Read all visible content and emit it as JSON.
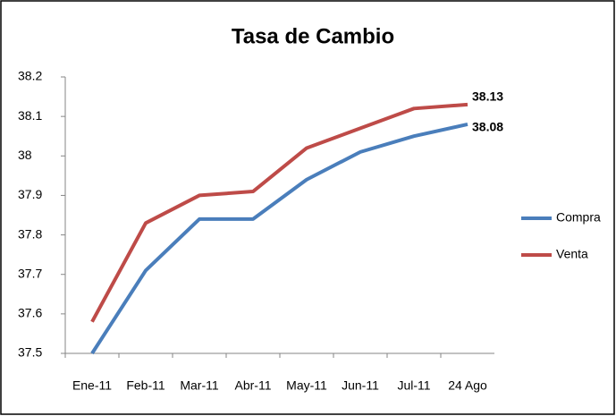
{
  "chart_data": {
    "type": "line",
    "title": "Tasa de Cambio",
    "categories": [
      "Ene-11",
      "Feb-11",
      "Mar-11",
      "Abr-11",
      "May-11",
      "Jun-11",
      "Jul-11",
      "24 Ago"
    ],
    "series": [
      {
        "name": "Compra",
        "color": "#4a7ebb",
        "values": [
          37.5,
          37.71,
          37.84,
          37.84,
          37.94,
          38.01,
          38.05,
          38.08
        ],
        "value_labels": [
          null,
          null,
          null,
          null,
          null,
          null,
          null,
          "38.08"
        ]
      },
      {
        "name": "Venta",
        "color": "#be4b48",
        "values": [
          37.58,
          37.83,
          37.9,
          37.91,
          38.02,
          38.07,
          38.12,
          38.13
        ],
        "value_labels": [
          null,
          null,
          null,
          null,
          null,
          null,
          null,
          "38.13"
        ]
      }
    ],
    "ylim": [
      37.5,
      38.2
    ],
    "yticks": [
      37.5,
      37.6,
      37.7,
      37.8,
      37.9,
      38,
      38.1,
      38.2
    ],
    "grid": false,
    "legend": "right"
  }
}
